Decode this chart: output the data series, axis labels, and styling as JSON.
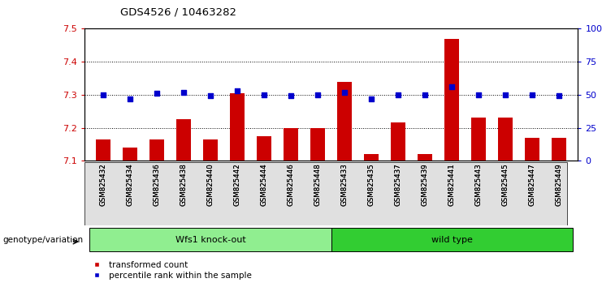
{
  "title": "GDS4526 / 10463282",
  "samples": [
    "GSM825432",
    "GSM825434",
    "GSM825436",
    "GSM825438",
    "GSM825440",
    "GSM825442",
    "GSM825444",
    "GSM825446",
    "GSM825448",
    "GSM825433",
    "GSM825435",
    "GSM825437",
    "GSM825439",
    "GSM825441",
    "GSM825443",
    "GSM825445",
    "GSM825447",
    "GSM825449"
  ],
  "bar_values": [
    7.165,
    7.14,
    7.165,
    7.225,
    7.165,
    7.305,
    7.175,
    7.2,
    7.2,
    7.34,
    7.12,
    7.215,
    7.12,
    7.47,
    7.23,
    7.23,
    7.17,
    7.17
  ],
  "dot_values": [
    50,
    47,
    51,
    52,
    49,
    53,
    50,
    49,
    50,
    52,
    47,
    50,
    50,
    56,
    50,
    50,
    50,
    49
  ],
  "groups": [
    {
      "label": "Wfs1 knock-out",
      "start": 0,
      "end": 9,
      "color": "#90EE90"
    },
    {
      "label": "wild type",
      "start": 9,
      "end": 18,
      "color": "#32CD32"
    }
  ],
  "bar_color": "#CC0000",
  "dot_color": "#0000CC",
  "ylim_left": [
    7.1,
    7.5
  ],
  "ylim_right": [
    0,
    100
  ],
  "yticks_left": [
    7.1,
    7.2,
    7.3,
    7.4,
    7.5
  ],
  "yticks_right": [
    0,
    25,
    50,
    75,
    100
  ],
  "ytick_labels_right": [
    "0",
    "25",
    "50",
    "75",
    "100%"
  ],
  "ytick_labels_left": [
    "7.1",
    "7.2",
    "7.3",
    "7.4",
    "7.5"
  ],
  "background_color": "#ffffff",
  "plot_bg_color": "#ffffff",
  "grid_color": "#000000",
  "bar_tick_color": "#CC0000",
  "dot_tick_color": "#0000CC",
  "genotype_label": "genotype/variation",
  "legend_entries": [
    "transformed count",
    "percentile rank within the sample"
  ]
}
